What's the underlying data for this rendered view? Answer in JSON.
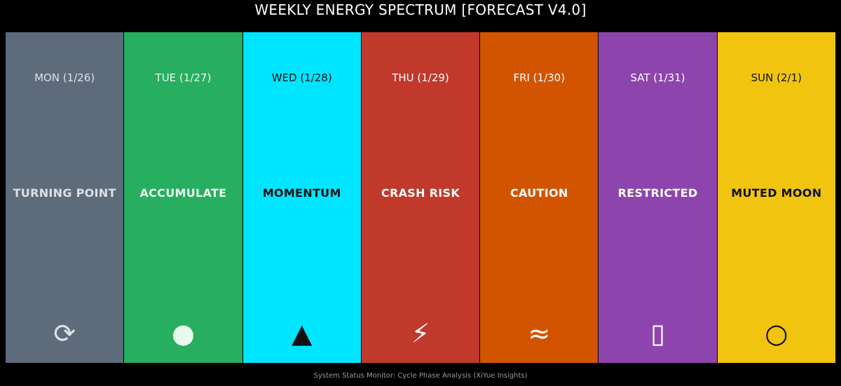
{
  "header": {
    "title": "WEEKLY ENERGY SPECTRUM [FORECAST V4.0]"
  },
  "days": [
    {
      "date": "MON (1/26)",
      "label": "TURNING POINT",
      "icon": "⟳",
      "color": "#5e6b7b",
      "text_color": "#dde1e6"
    },
    {
      "date": "TUE (1/27)",
      "label": "ACCUMULATE",
      "icon": "●",
      "color": "#27ae60",
      "text_color": "#e9f8ef"
    },
    {
      "date": "WED (1/28)",
      "label": "MOMENTUM",
      "icon": "▲",
      "color": "#00e5ff",
      "text_color": "#111111"
    },
    {
      "date": "THU (1/29)",
      "label": "CRASH RISK",
      "icon": "⚡",
      "color": "#c0392b",
      "text_color": "#ffffff"
    },
    {
      "date": "FRI (1/30)",
      "label": "CAUTION",
      "icon": "≈",
      "color": "#d35400",
      "text_color": "#ffffff"
    },
    {
      "date": "SAT (1/31)",
      "label": "RESTRICTED",
      "icon": "▯",
      "color": "#8e44ad",
      "text_color": "#ffffff"
    },
    {
      "date": "SUN (2/1)",
      "label": "MUTED MOON",
      "icon": "○",
      "color": "#f1c40f",
      "text_color": "#111111"
    }
  ],
  "footer": {
    "text": "System Status Monitor: Cycle Phase Analysis (XiYue Insights)"
  }
}
